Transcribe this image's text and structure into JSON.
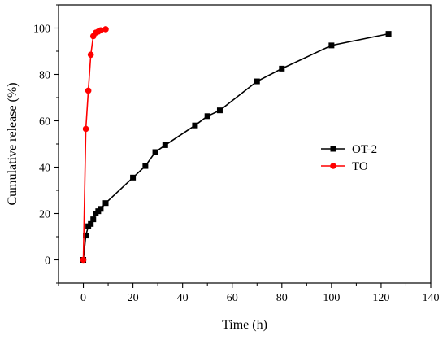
{
  "chart_data": {
    "type": "line",
    "title": "",
    "xlabel": "Time (h)",
    "ylabel": "Cumulative release (%)",
    "xlim": [
      -10,
      140
    ],
    "ylim": [
      -10,
      110
    ],
    "xticks": [
      0,
      20,
      40,
      60,
      80,
      100,
      120,
      140
    ],
    "yticks": [
      0,
      20,
      40,
      60,
      80,
      100
    ],
    "xtick_labels": [
      "0",
      "20",
      "40",
      "60",
      "80",
      "100",
      "120",
      "140"
    ],
    "ytick_labels": [
      "0",
      "20",
      "40",
      "60",
      "80",
      "100"
    ],
    "grid": false,
    "legend_position": "center-right",
    "series": [
      {
        "name": "OT-2",
        "color": "#000000",
        "marker": "square",
        "x": [
          0,
          1,
          2,
          3,
          4,
          5,
          6,
          7,
          9,
          20,
          25,
          29,
          33,
          45,
          50,
          55,
          70,
          80,
          100,
          123
        ],
        "y": [
          0,
          10.5,
          14.5,
          15.5,
          17.5,
          20,
          21,
          22,
          24.5,
          35.5,
          40.5,
          46.5,
          49.5,
          58,
          62,
          64.5,
          77,
          82.5,
          92.5,
          97.5
        ]
      },
      {
        "name": "TO",
        "color": "#ff0000",
        "marker": "circle",
        "x": [
          0,
          1,
          2,
          3,
          4,
          5,
          6,
          7,
          9
        ],
        "y": [
          0,
          56.5,
          73,
          88.5,
          96.5,
          98,
          98.5,
          99,
          99.5
        ]
      }
    ]
  }
}
